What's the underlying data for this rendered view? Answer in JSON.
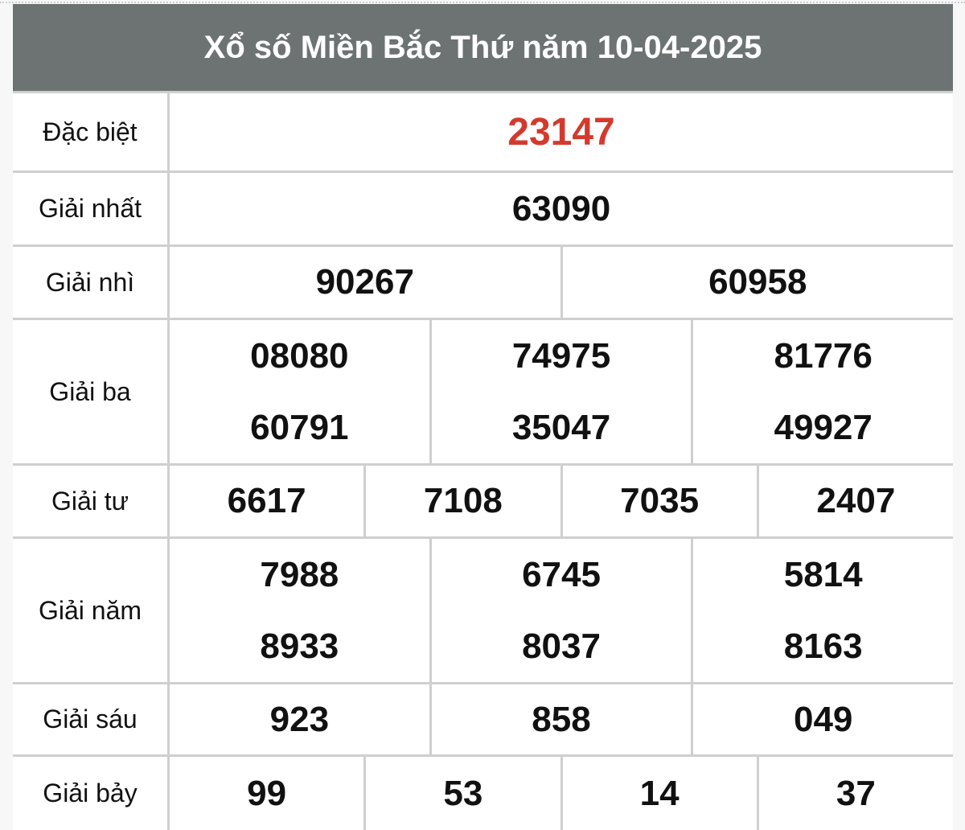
{
  "title": "Xổ số Miền Bắc Thứ năm 10-04-2025",
  "colors": {
    "header_bg": "#6d7373",
    "special_prize": "#d33a2c"
  },
  "prizes": [
    {
      "label": "Đặc biệt",
      "columns": [
        [
          "23147"
        ]
      ]
    },
    {
      "label": "Giải nhất",
      "columns": [
        [
          "63090"
        ]
      ]
    },
    {
      "label": "Giải nhì",
      "columns": [
        [
          "90267"
        ],
        [
          "60958"
        ]
      ]
    },
    {
      "label": "Giải ba",
      "columns": [
        [
          "08080",
          "60791"
        ],
        [
          "74975",
          "35047"
        ],
        [
          "81776",
          "49927"
        ]
      ]
    },
    {
      "label": "Giải tư",
      "columns": [
        [
          "6617"
        ],
        [
          "7108"
        ],
        [
          "7035"
        ],
        [
          "2407"
        ]
      ]
    },
    {
      "label": "Giải năm",
      "columns": [
        [
          "7988",
          "8933"
        ],
        [
          "6745",
          "8037"
        ],
        [
          "5814",
          "8163"
        ]
      ]
    },
    {
      "label": "Giải sáu",
      "columns": [
        [
          "923"
        ],
        [
          "858"
        ],
        [
          "049"
        ]
      ]
    },
    {
      "label": "Giải bảy",
      "columns": [
        [
          "99"
        ],
        [
          "53"
        ],
        [
          "14"
        ],
        [
          "37"
        ]
      ]
    }
  ]
}
